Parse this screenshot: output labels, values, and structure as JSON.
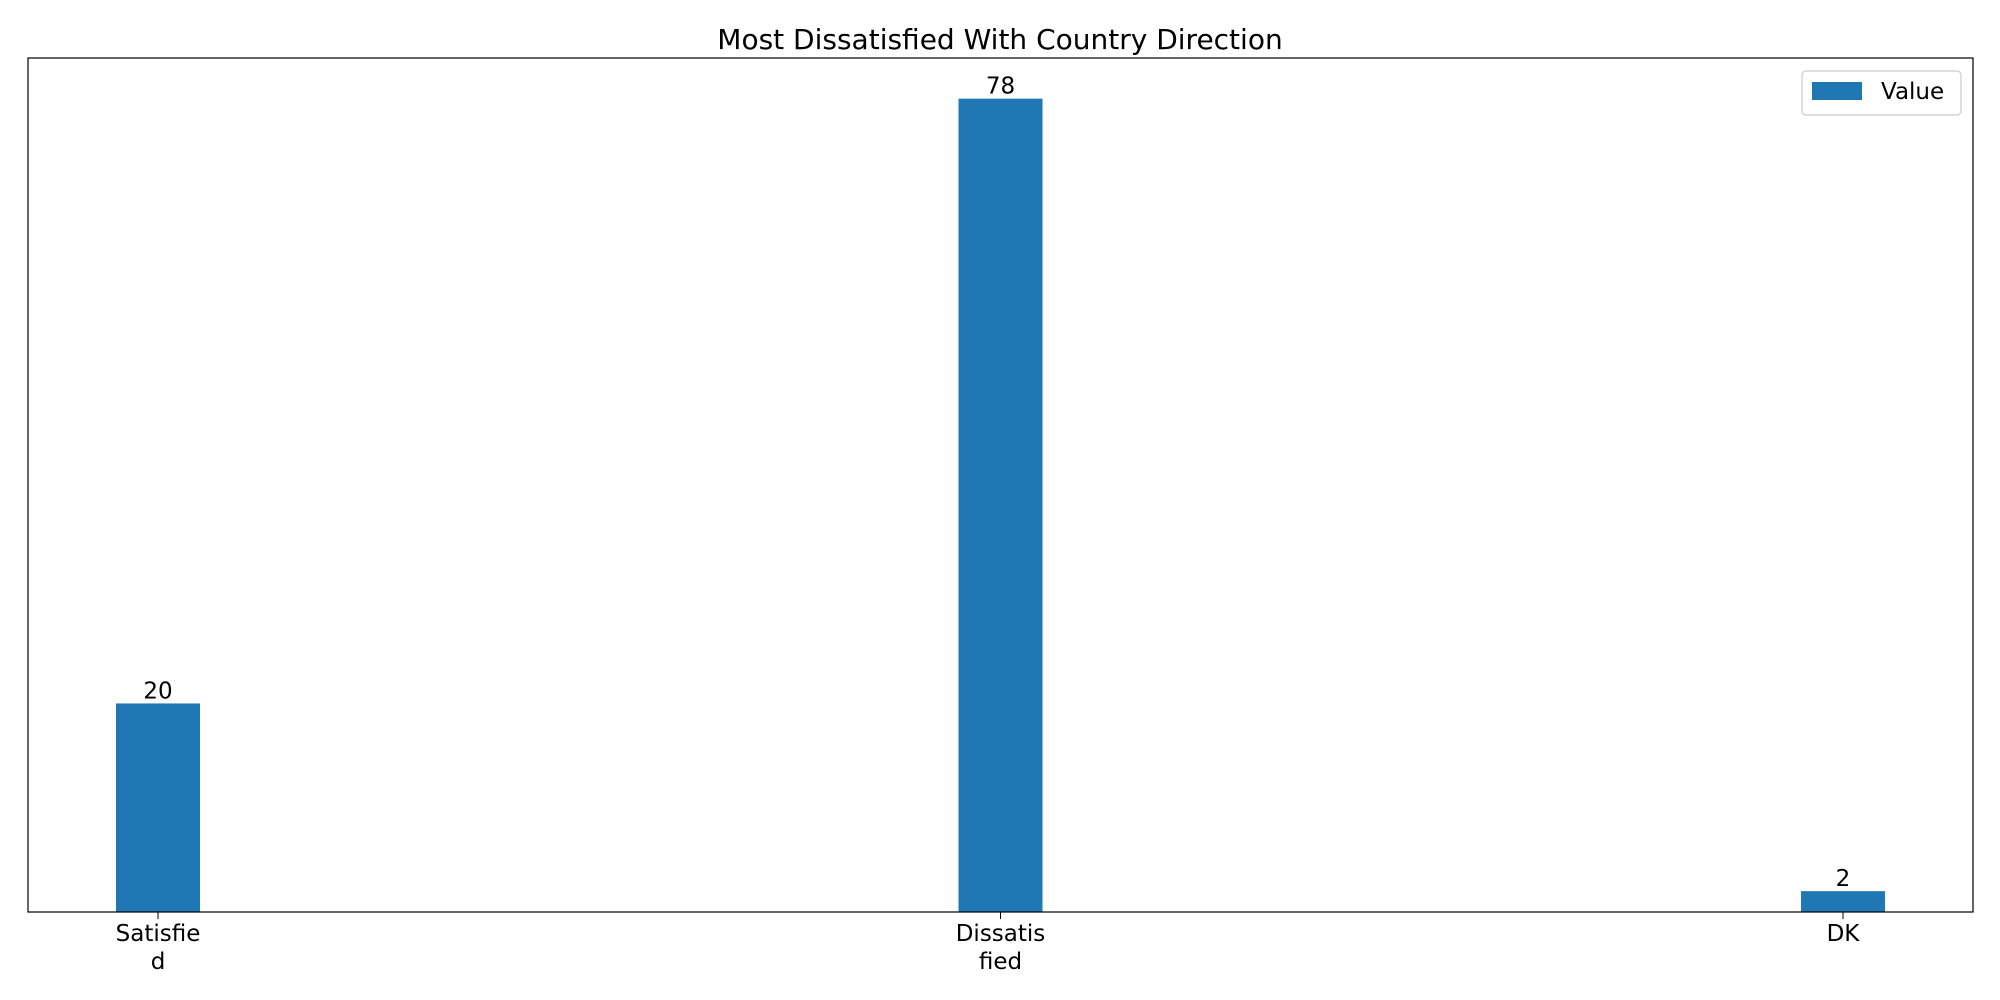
{
  "chart_data": {
    "type": "bar",
    "title": "Most Dissatisfied With Country Direction",
    "xlabel": "",
    "ylabel": "",
    "categories": [
      [
        "Satisfie",
        "d"
      ],
      [
        "Dissatis",
        "fied"
      ],
      [
        "DK"
      ]
    ],
    "series": [
      {
        "name": "Value",
        "color": "#1f77b4",
        "values": [
          20,
          78,
          2
        ]
      }
    ],
    "data_labels": [
      "20",
      "78",
      "2"
    ],
    "ylim": [
      0,
      81.9
    ],
    "grid": false,
    "legend": {
      "placement": "top-right"
    }
  }
}
